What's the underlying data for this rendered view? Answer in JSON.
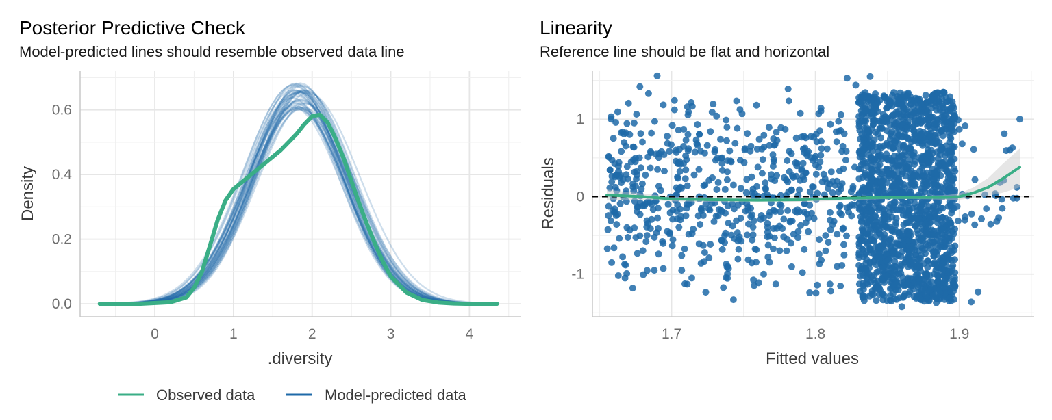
{
  "chart_data": [
    {
      "type": "line",
      "title": "Posterior Predictive Check",
      "subtitle": "Model-predicted lines should resemble observed data line",
      "xlabel": ".diversity",
      "ylabel": "Density",
      "xlim": [
        -0.95,
        4.65
      ],
      "ylim": [
        -0.04,
        0.72
      ],
      "x_ticks": [
        0,
        1,
        2,
        3,
        4
      ],
      "x_tick_labels": [
        "0",
        "1",
        "2",
        "3",
        "4"
      ],
      "y_ticks": [
        0.0,
        0.2,
        0.4,
        0.6
      ],
      "y_tick_labels": [
        "0.0",
        "0.2",
        "0.4",
        "0.6"
      ],
      "grid": true,
      "legend": {
        "position": "bottom",
        "entries": [
          {
            "label": "Observed data",
            "color": "#3aae86"
          },
          {
            "label": "Model-predicted data",
            "color": "#1f6aa8"
          }
        ]
      },
      "series": [
        {
          "name": "Observed data",
          "color": "#3aae86",
          "x": [
            -0.7,
            -0.2,
            0.2,
            0.4,
            0.5,
            0.6,
            0.7,
            0.8,
            0.9,
            1.0,
            1.1,
            1.2,
            1.3,
            1.4,
            1.5,
            1.6,
            1.7,
            1.8,
            1.9,
            2.0,
            2.1,
            2.2,
            2.3,
            2.4,
            2.5,
            2.6,
            2.7,
            2.8,
            2.9,
            3.0,
            3.2,
            3.4,
            3.6,
            3.8,
            4.0,
            4.35
          ],
          "y": [
            0.0,
            0.0,
            0.005,
            0.02,
            0.05,
            0.1,
            0.18,
            0.26,
            0.32,
            0.355,
            0.375,
            0.395,
            0.415,
            0.435,
            0.455,
            0.475,
            0.5,
            0.525,
            0.555,
            0.58,
            0.585,
            0.56,
            0.51,
            0.45,
            0.38,
            0.31,
            0.245,
            0.185,
            0.13,
            0.085,
            0.035,
            0.012,
            0.004,
            0.001,
            0.0,
            0.0
          ]
        },
        {
          "name": "Model-predicted data",
          "color": "#1f6aa8",
          "draws": 40,
          "mean": 1.85,
          "sd": 0.62,
          "peak_range": [
            0.6,
            0.685
          ],
          "x_range": [
            -0.7,
            4.35
          ]
        }
      ]
    },
    {
      "type": "scatter",
      "title": "Linearity",
      "subtitle": "Reference line should be flat and horizontal",
      "xlabel": "Fitted values",
      "ylabel": "Residuals",
      "xlim": [
        1.645,
        1.952
      ],
      "ylim": [
        -1.55,
        1.62
      ],
      "x_ticks": [
        1.7,
        1.8,
        1.9
      ],
      "x_tick_labels": [
        "1.7",
        "1.8",
        "1.9"
      ],
      "y_ticks": [
        -1,
        0,
        1
      ],
      "y_tick_labels": [
        "-1",
        "0",
        "1"
      ],
      "grid": true,
      "reference_line": {
        "y": 0,
        "style": "dashed",
        "color": "#000000"
      },
      "point_color": "#1f6aa8",
      "smooth": {
        "color": "#3aae86",
        "x": [
          1.655,
          1.68,
          1.7,
          1.73,
          1.76,
          1.79,
          1.82,
          1.85,
          1.87,
          1.89,
          1.9,
          1.91,
          1.92,
          1.93,
          1.942
        ],
        "y": [
          0.02,
          0.0,
          -0.03,
          -0.04,
          -0.045,
          -0.04,
          -0.02,
          -0.01,
          -0.01,
          -0.01,
          0.0,
          0.05,
          0.12,
          0.23,
          0.38
        ],
        "band_lo": [
          -0.05,
          -0.04,
          -0.06,
          -0.07,
          -0.075,
          -0.07,
          -0.05,
          -0.03,
          -0.03,
          -0.04,
          -0.04,
          -0.02,
          0.01,
          0.05,
          0.12
        ],
        "band_hi": [
          0.09,
          0.04,
          0.0,
          -0.01,
          -0.015,
          -0.01,
          0.01,
          0.01,
          0.01,
          0.02,
          0.04,
          0.12,
          0.24,
          0.42,
          0.62
        ]
      },
      "points": [
        [
          1.69,
          1.56
        ],
        [
          1.822,
          1.53
        ],
        [
          1.828,
          1.44
        ],
        [
          1.838,
          1.55
        ],
        [
          1.678,
          1.42
        ],
        [
          1.684,
          1.33
        ],
        [
          1.781,
          1.39
        ],
        [
          1.658,
          1.03
        ],
        [
          1.658,
          1.0
        ],
        [
          1.942,
          1.0
        ],
        [
          1.673,
          -1.18
        ],
        [
          1.663,
          -1.02
        ],
        [
          1.743,
          -1.33
        ],
        [
          1.796,
          -1.24
        ],
        [
          1.913,
          -1.23
        ],
        [
          1.86,
          -1.42
        ],
        [
          1.884,
          -1.37
        ],
        [
          1.9,
          0.87
        ],
        [
          1.935,
          0.6
        ],
        [
          1.94,
          0.12
        ],
        [
          1.94,
          -0.02
        ],
        [
          1.667,
          0.7
        ],
        [
          1.672,
          0.45
        ],
        [
          1.676,
          0.28
        ],
        [
          1.68,
          -0.12
        ],
        [
          1.683,
          -0.5
        ],
        [
          1.686,
          0.82
        ],
        [
          1.691,
          -0.74
        ],
        [
          1.695,
          0.33
        ],
        [
          1.699,
          -0.21
        ],
        [
          1.703,
          0.6
        ],
        [
          1.707,
          -0.95
        ],
        [
          1.711,
          0.14
        ],
        [
          1.715,
          -0.42
        ],
        [
          1.718,
          0.93
        ],
        [
          1.722,
          -0.63
        ],
        [
          1.726,
          0.21
        ],
        [
          1.73,
          -0.08
        ],
        [
          1.734,
          0.74
        ],
        [
          1.738,
          -0.87
        ],
        [
          1.741,
          0.46
        ],
        [
          1.745,
          -0.31
        ],
        [
          1.749,
          1.07
        ],
        [
          1.752,
          0.05
        ],
        [
          1.756,
          -0.56
        ],
        [
          1.76,
          0.38
        ],
        [
          1.764,
          -1.0
        ],
        [
          1.768,
          0.66
        ],
        [
          1.772,
          -0.19
        ],
        [
          1.776,
          0.89
        ],
        [
          1.78,
          -0.7
        ],
        [
          1.784,
          0.27
        ],
        [
          1.788,
          -0.45
        ],
        [
          1.792,
          0.78
        ],
        [
          1.796,
          -0.11
        ],
        [
          1.8,
          0.52
        ],
        [
          1.804,
          -0.82
        ],
        [
          1.808,
          0.18
        ],
        [
          1.812,
          -0.36
        ],
        [
          1.816,
          0.97
        ],
        [
          1.66,
          -0.66
        ],
        [
          1.664,
          0.25
        ],
        [
          1.669,
          -0.4
        ],
        [
          1.674,
          0.95
        ],
        [
          1.679,
          0.1
        ],
        [
          1.688,
          -0.95
        ],
        [
          1.693,
          0.58
        ],
        [
          1.697,
          -0.45
        ],
        [
          1.702,
          1.12
        ],
        [
          1.706,
          -0.16
        ],
        [
          1.71,
          0.73
        ],
        [
          1.714,
          -1.05
        ],
        [
          1.719,
          0.35
        ],
        [
          1.723,
          -0.72
        ],
        [
          1.727,
          0.84
        ],
        [
          1.731,
          -0.25
        ],
        [
          1.735,
          0.5
        ],
        [
          1.739,
          -0.9
        ],
        [
          1.743,
          0.15
        ],
        [
          1.747,
          -0.55
        ],
        [
          1.751,
          0.62
        ],
        [
          1.755,
          -0.15
        ],
        [
          1.759,
          1.18
        ],
        [
          1.763,
          0.3
        ],
        [
          1.767,
          -0.78
        ],
        [
          1.771,
          0.48
        ],
        [
          1.775,
          -0.38
        ],
        [
          1.779,
          0.87
        ],
        [
          1.783,
          -0.6
        ],
        [
          1.787,
          0.4
        ],
        [
          1.791,
          -0.98
        ],
        [
          1.795,
          0.58
        ],
        [
          1.799,
          -0.28
        ],
        [
          1.803,
          0.85
        ],
        [
          1.807,
          -0.5
        ],
        [
          1.811,
          0.32
        ],
        [
          1.815,
          -0.9
        ],
        [
          1.819,
          0.65
        ],
        [
          1.823,
          -0.2
        ],
        [
          1.826,
          0.1
        ]
      ],
      "dense_band": {
        "x_range": [
          1.83,
          1.897
        ],
        "y_range": [
          -1.35,
          1.35
        ],
        "count": 1600
      }
    }
  ]
}
